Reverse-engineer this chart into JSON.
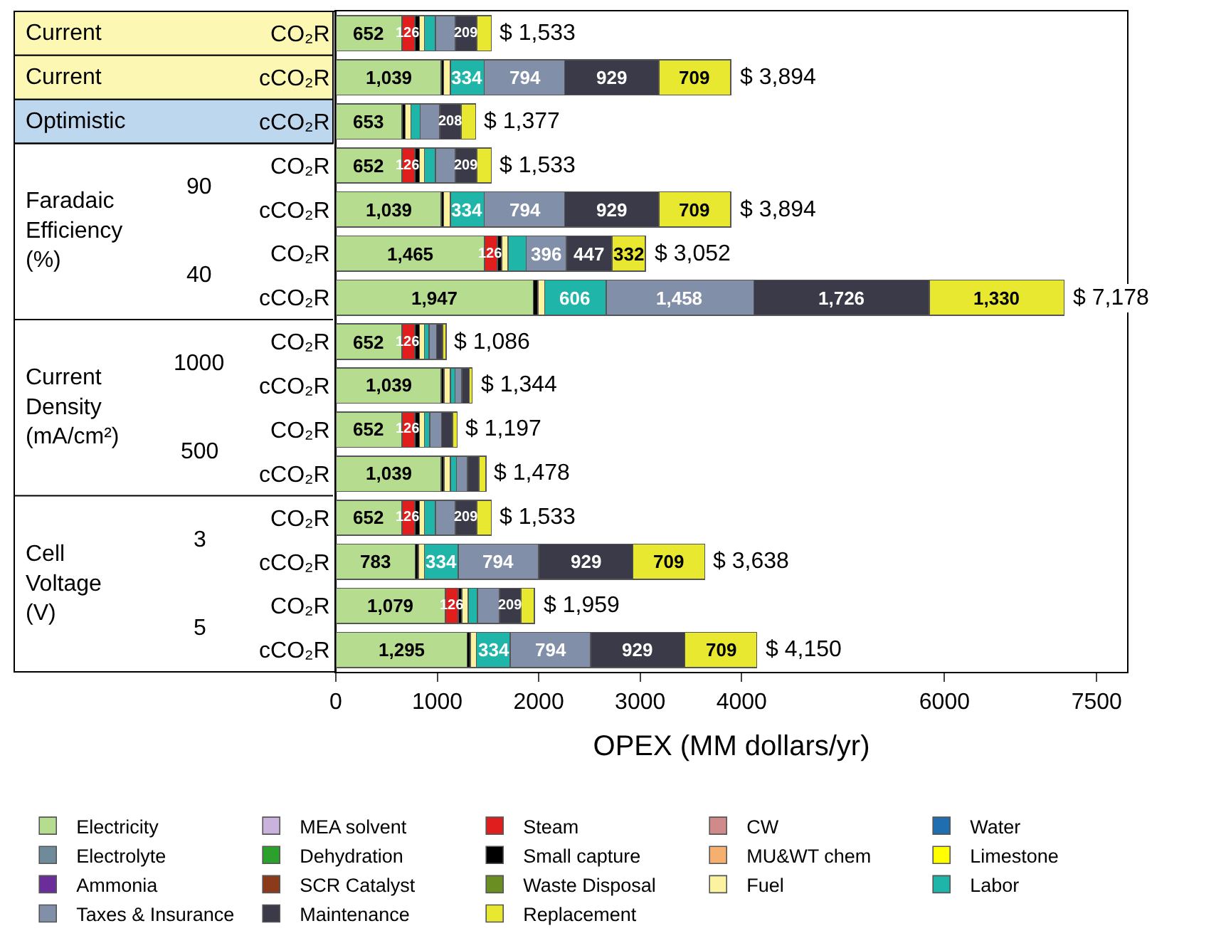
{
  "chart_data": {
    "type": "bar",
    "orientation": "horizontal",
    "stacked": true,
    "xlabel": "OPEX (MM dollars/yr)",
    "categories": [
      "CO₂R",
      "cCO₂R",
      "cCO₂R",
      "CO₂R",
      "cCO₂R",
      "CO₂R",
      "cCO₂R",
      "CO₂R",
      "cCO₂R",
      "CO₂R",
      "cCO₂R",
      "CO₂R",
      "cCO₂R",
      "CO₂R",
      "cCO₂R"
    ],
    "xlim": [
      0,
      7800
    ],
    "xticks": [
      0,
      1000,
      2000,
      3000,
      4000,
      6000,
      7500
    ],
    "legend": "bottom",
    "series": [
      {
        "name": "Electricity",
        "color": "#b5dc8f",
        "values": [
          652,
          1039,
          653,
          652,
          1039,
          1465,
          1947,
          652,
          1039,
          652,
          1039,
          652,
          783,
          1079,
          1295
        ],
        "value_labels": [
          "652",
          "1,039",
          "653",
          "652",
          "1,039",
          "1,465",
          "1,947",
          "652",
          "1,039",
          "652",
          "1,039",
          "652",
          "783",
          "1,079",
          "1,295"
        ]
      },
      {
        "name": "Steam",
        "color": "#e01e1e",
        "values": [
          126,
          null,
          null,
          126,
          null,
          126,
          null,
          126,
          null,
          126,
          null,
          126,
          null,
          126,
          null
        ],
        "value_labels": [
          "126",
          null,
          null,
          "126",
          null,
          "126",
          null,
          "126",
          null,
          "126",
          null,
          "126",
          null,
          "126",
          null
        ]
      },
      {
        "name": "Small capture",
        "color": "#000000",
        "values": [
          45,
          25,
          32,
          45,
          25,
          43,
          46,
          45,
          28,
          45,
          28,
          45,
          29,
          36,
          30
        ]
      },
      {
        "name": "Fuel",
        "color": "#fbf3a0",
        "values": [
          50,
          64,
          54,
          50,
          64,
          65,
          65,
          50,
          61,
          50,
          61,
          50,
          60,
          65,
          59
        ]
      },
      {
        "name": "Labor",
        "color": "#1fb5a8",
        "values": [
          110,
          334,
          93,
          110,
          334,
          178,
          606,
          47,
          47,
          54,
          61,
          110,
          334,
          90,
          334
        ],
        "value_labels": [
          null,
          "334",
          null,
          null,
          "334",
          null,
          "606",
          null,
          null,
          null,
          null,
          null,
          "334",
          null,
          "334"
        ]
      },
      {
        "name": "Taxes & Insurance",
        "color": "#8190a8",
        "values": [
          196,
          794,
          194,
          196,
          794,
          396,
          1458,
          72,
          68,
          115,
          108,
          196,
          794,
          218,
          794
        ],
        "value_labels": [
          null,
          "794",
          null,
          null,
          "794",
          "396",
          "1,458",
          null,
          null,
          null,
          null,
          null,
          "794",
          null,
          "794"
        ]
      },
      {
        "name": "Maintenance",
        "color": "#3a3a48",
        "values": [
          209,
          929,
          208,
          209,
          929,
          447,
          1726,
          61,
          72,
          108,
          111,
          209,
          929,
          209,
          929
        ],
        "value_labels": [
          "209",
          "929",
          "208",
          "209",
          "929",
          "447",
          "1,726",
          null,
          null,
          null,
          null,
          "209",
          "929",
          "209",
          "929"
        ]
      },
      {
        "name": "Replacement",
        "color": "#e8e830",
        "values": [
          145,
          709,
          143,
          145,
          709,
          332,
          1330,
          33,
          29,
          47,
          70,
          145,
          709,
          136,
          709
        ],
        "value_labels": [
          null,
          "709",
          null,
          null,
          "709",
          "332",
          "1,330",
          null,
          null,
          null,
          null,
          null,
          "709",
          null,
          "709"
        ]
      },
      {
        "name": "Electrolyte",
        "color": "#6f8b9a",
        "values": [
          null,
          null,
          null,
          null,
          null,
          null,
          null,
          null,
          null,
          null,
          null,
          null,
          null,
          null,
          null
        ]
      },
      {
        "name": "Ammonia",
        "color": "#6a2d9a",
        "values": [
          null,
          null,
          null,
          null,
          null,
          null,
          null,
          null,
          null,
          null,
          null,
          null,
          null,
          null,
          null
        ]
      },
      {
        "name": "MEA solvent",
        "color": "#c9b3dc",
        "values": [
          null,
          null,
          null,
          null,
          null,
          null,
          null,
          null,
          null,
          null,
          null,
          null,
          null,
          null,
          null
        ]
      },
      {
        "name": "Dehydration",
        "color": "#2ca02c",
        "values": [
          null,
          null,
          null,
          null,
          null,
          null,
          null,
          null,
          null,
          null,
          null,
          null,
          null,
          null,
          null
        ]
      },
      {
        "name": "SCR Catalyst",
        "color": "#8b3a1a",
        "values": [
          null,
          null,
          null,
          null,
          null,
          null,
          null,
          null,
          null,
          null,
          null,
          null,
          null,
          null,
          null
        ]
      },
      {
        "name": "Waste Disposal",
        "color": "#6b8e23",
        "values": [
          null,
          null,
          null,
          null,
          null,
          null,
          null,
          null,
          null,
          null,
          null,
          null,
          null,
          null,
          null
        ]
      },
      {
        "name": "CW",
        "color": "#d08a8a",
        "values": [
          null,
          null,
          null,
          null,
          null,
          null,
          null,
          null,
          null,
          null,
          null,
          null,
          null,
          null,
          null
        ]
      },
      {
        "name": "MU&WT chem",
        "color": "#f5b070",
        "values": [
          null,
          null,
          null,
          null,
          null,
          null,
          null,
          null,
          null,
          null,
          null,
          null,
          null,
          null,
          null
        ]
      },
      {
        "name": "Water",
        "color": "#1f6fb0",
        "values": [
          null,
          null,
          null,
          null,
          null,
          null,
          null,
          null,
          null,
          null,
          null,
          null,
          null,
          null,
          null
        ]
      },
      {
        "name": "Limestone",
        "color": "#ffff00",
        "values": [
          null,
          null,
          null,
          null,
          null,
          null,
          null,
          null,
          null,
          null,
          null,
          null,
          null,
          null,
          null
        ]
      }
    ],
    "totals": [
      "$ 1,533",
      "$ 3,894",
      "$ 1,377",
      "$ 1,533",
      "$ 3,894",
      "$ 3,052",
      "$ 7,178",
      "$ 1,086",
      "$ 1,344",
      "$ 1,197",
      "$ 1,478",
      "$ 1,533",
      "$ 3,638",
      "$ 1,959",
      "$ 4,150"
    ],
    "annotations": [
      "Current",
      "Current",
      "Optimistic",
      "Faradaic Efficiency (%)",
      "90",
      "40",
      "Current Density (mA/cm²)",
      "1000",
      "500",
      "Cell Voltage (V)",
      "3",
      "5"
    ]
  }
}
